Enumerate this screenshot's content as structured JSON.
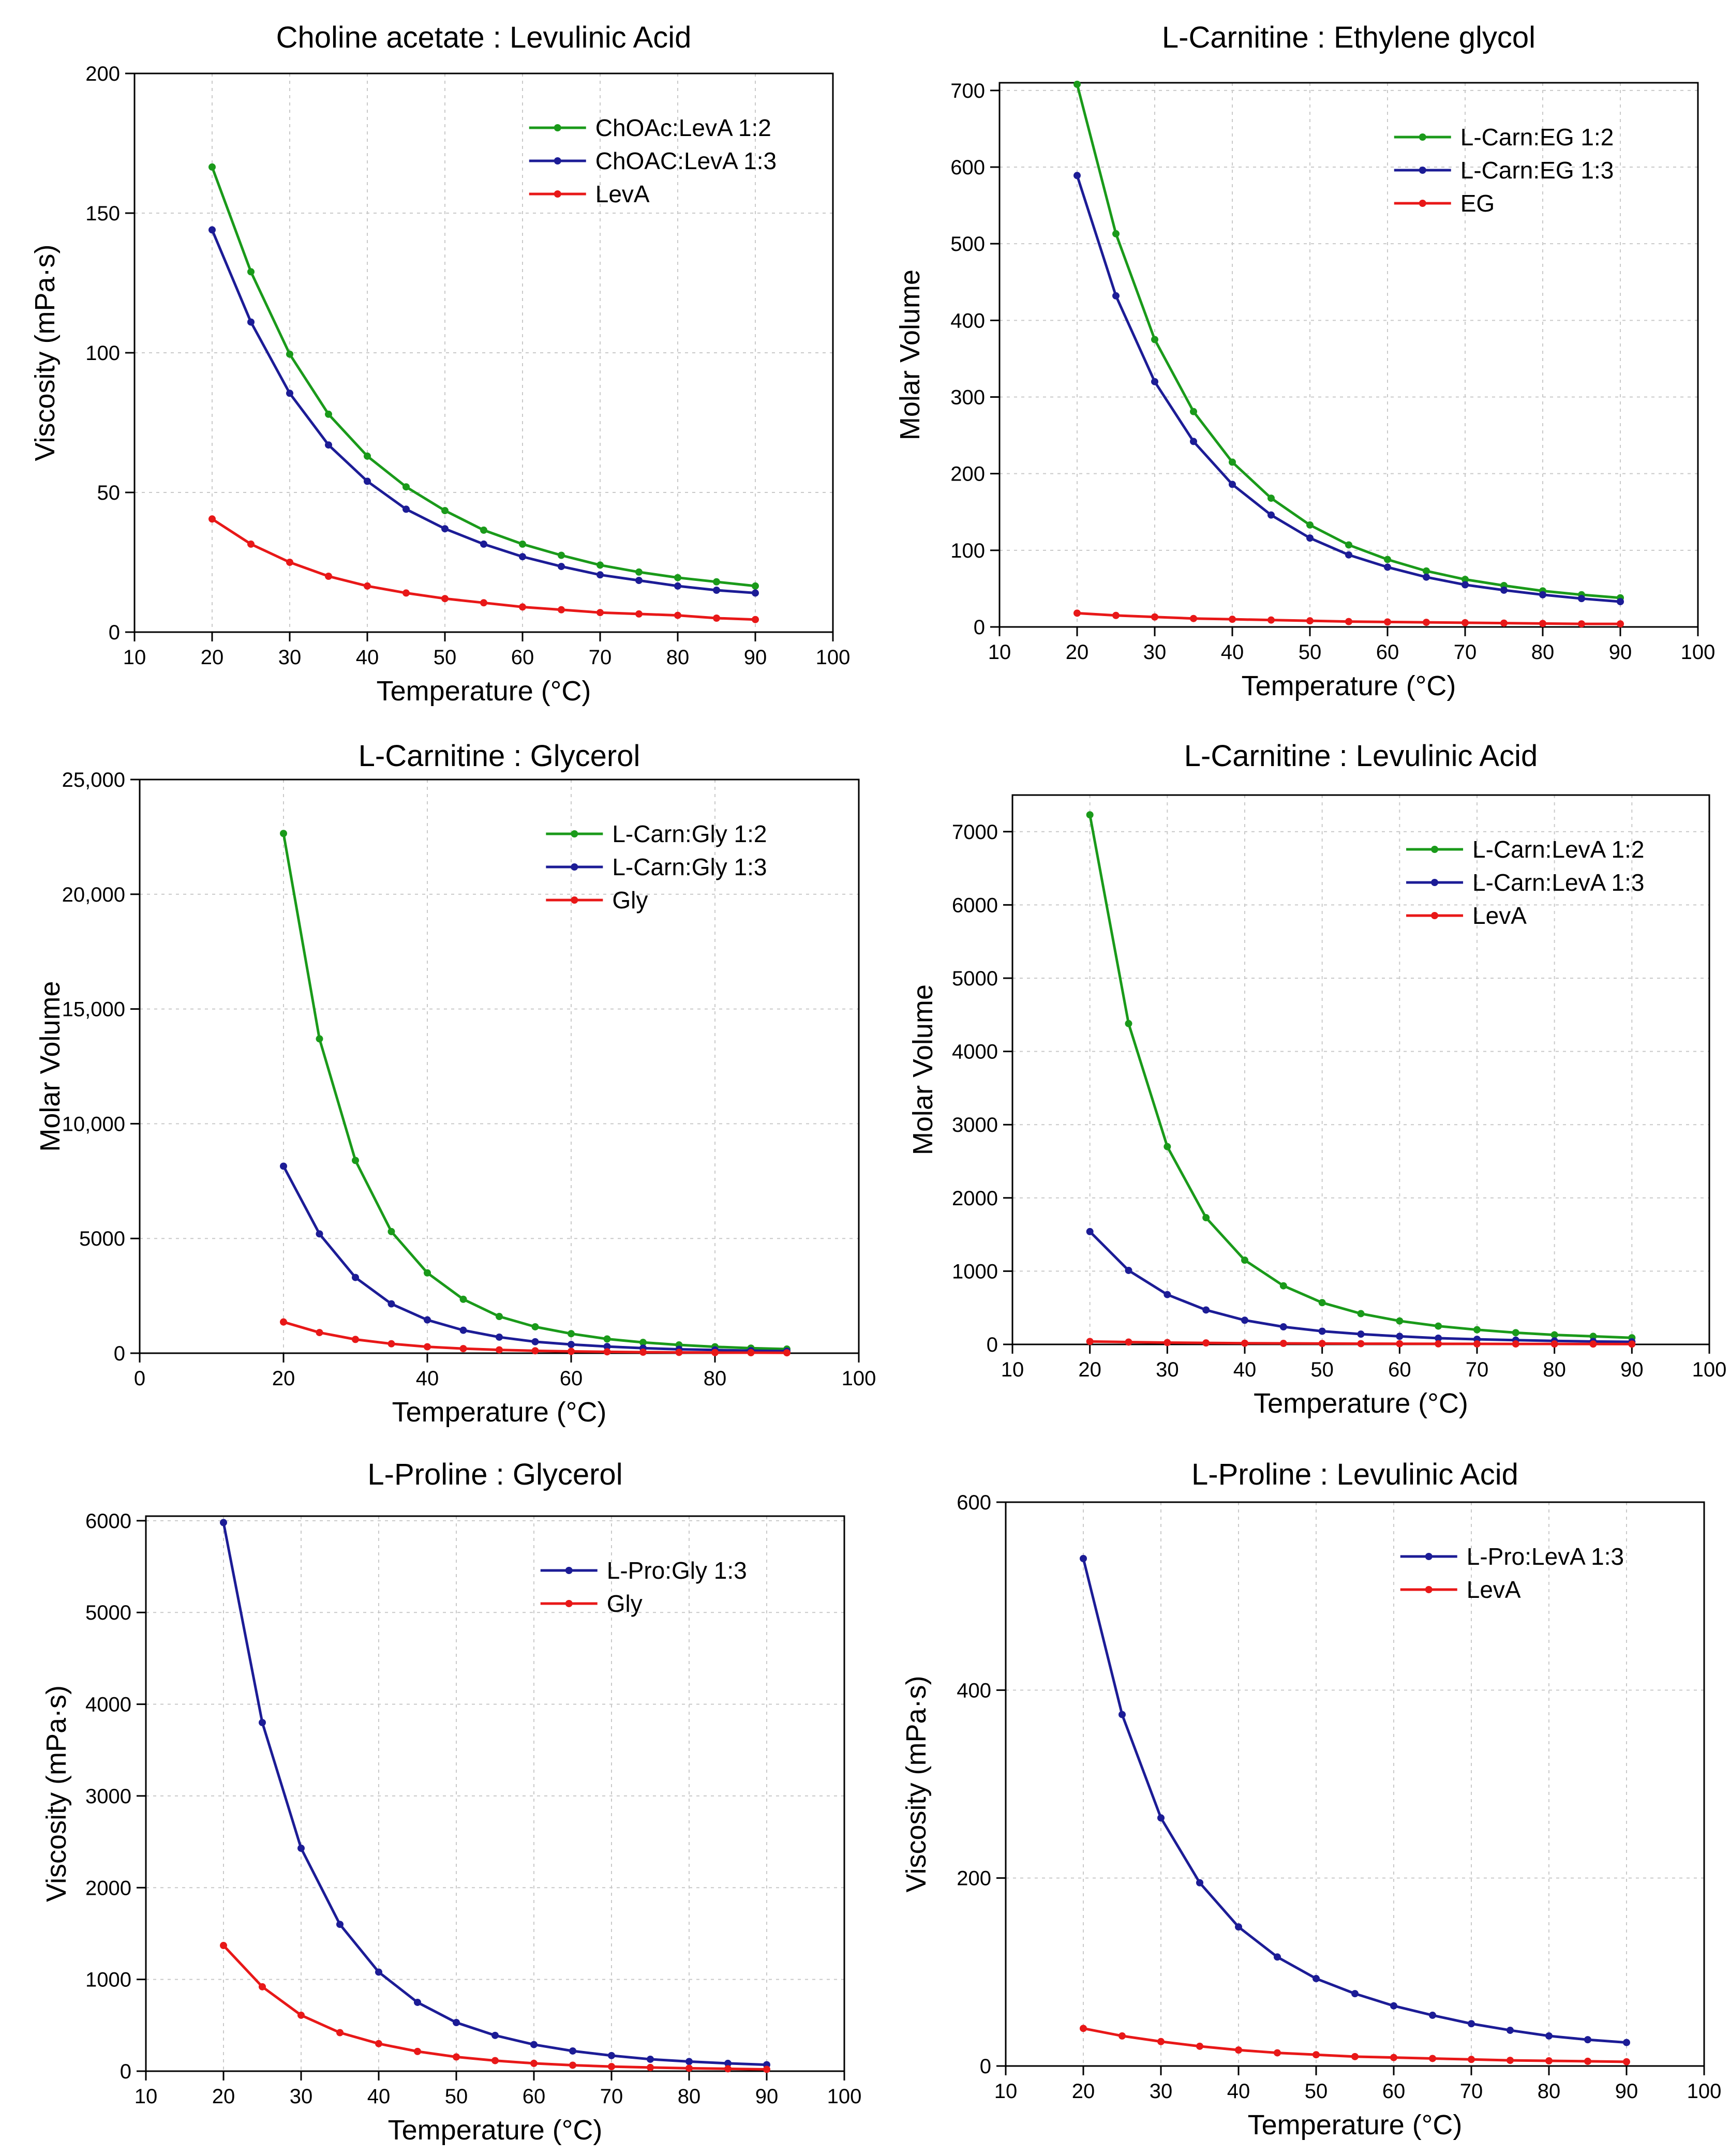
{
  "chart_data": [
    {
      "type": "line",
      "title": "Choline acetate : Levulinic Acid",
      "xlabel": "Temperature (°C)",
      "ylabel": "Viscosity (mPa·s)",
      "xlim": [
        10,
        100
      ],
      "ylim": [
        0,
        200
      ],
      "xticks": [
        10,
        20,
        30,
        40,
        50,
        60,
        70,
        80,
        90,
        100
      ],
      "yticks": [
        0,
        50,
        100,
        150,
        200
      ],
      "ytick_labels": [
        "0",
        "50",
        "100",
        "150",
        "200"
      ],
      "grid": true,
      "legend_position": "top-right",
      "x": [
        20,
        25,
        30,
        35,
        40,
        45,
        50,
        55,
        60,
        65,
        70,
        75,
        80,
        85,
        90
      ],
      "series": [
        {
          "name": "ChOAc:LevA 1:2",
          "color": "#1a9a1a",
          "values": [
            166.5,
            129,
            99.5,
            78,
            63,
            52,
            43.5,
            36.5,
            31.5,
            27.5,
            24,
            21.5,
            19.5,
            18,
            16.5
          ]
        },
        {
          "name": "ChOAC:LevA 1:3",
          "color": "#1c1c96",
          "values": [
            144,
            111,
            85.5,
            67,
            54,
            44,
            37,
            31.5,
            27,
            23.5,
            20.5,
            18.5,
            16.5,
            15,
            14
          ]
        },
        {
          "name": "LevA",
          "color": "#e81818",
          "values": [
            40.5,
            31.5,
            25,
            20,
            16.5,
            14,
            12,
            10.5,
            9,
            8,
            7,
            6.5,
            6,
            5,
            4.5
          ]
        }
      ]
    },
    {
      "type": "line",
      "title": "L-Carnitine : Ethylene glycol",
      "xlabel": "Temperature (°C)",
      "ylabel": "Molar Volume",
      "xlim": [
        10,
        100
      ],
      "ylim": [
        0,
        710
      ],
      "xticks": [
        10,
        20,
        30,
        40,
        50,
        60,
        70,
        80,
        90,
        100
      ],
      "yticks": [
        0,
        100,
        200,
        300,
        400,
        500,
        600,
        700
      ],
      "ytick_labels": [
        "0",
        "100",
        "200",
        "300",
        "400",
        "500",
        "600",
        "700"
      ],
      "grid": true,
      "legend_position": "top-right",
      "x": [
        20,
        25,
        30,
        35,
        40,
        45,
        50,
        55,
        60,
        65,
        70,
        75,
        80,
        85,
        90
      ],
      "series": [
        {
          "name": "L-Carn:EG 1:2",
          "color": "#1a9a1a",
          "values": [
            708,
            513,
            375,
            281,
            215,
            168,
            133,
            107,
            88,
            73,
            62,
            54,
            47,
            42,
            38
          ]
        },
        {
          "name": "L-Carn:EG 1:3",
          "color": "#1c1c96",
          "values": [
            589,
            432,
            320,
            242,
            186,
            146,
            116,
            94,
            78,
            65,
            55,
            48,
            42,
            37,
            33
          ]
        },
        {
          "name": "EG",
          "color": "#e81818",
          "values": [
            18,
            15,
            13,
            11,
            10,
            9,
            8,
            7,
            6.5,
            6,
            5.5,
            5,
            4.5,
            4,
            4
          ]
        }
      ]
    },
    {
      "type": "line",
      "title": "L-Carnitine : Glycerol",
      "xlabel": "Temperature (°C)",
      "ylabel": "Molar Volume",
      "xlim": [
        0,
        100
      ],
      "ylim": [
        0,
        25000
      ],
      "xticks": [
        0,
        20,
        40,
        60,
        80,
        100
      ],
      "yticks": [
        0,
        5000,
        10000,
        15000,
        20000,
        25000
      ],
      "ytick_labels": [
        "0",
        "5000",
        "10,000",
        "15,000",
        "20,000",
        "25,000"
      ],
      "grid": true,
      "legend_position": "top-right",
      "x": [
        20,
        25,
        30,
        35,
        40,
        45,
        50,
        55,
        60,
        65,
        70,
        75,
        80,
        85,
        90
      ],
      "series": [
        {
          "name": "L-Carn:Gly 1:2",
          "color": "#1a9a1a",
          "values": [
            22650,
            13700,
            8400,
            5300,
            3500,
            2350,
            1600,
            1150,
            850,
            620,
            470,
            360,
            280,
            220,
            180
          ]
        },
        {
          "name": "L-Carn:Gly 1:3",
          "color": "#1c1c96",
          "values": [
            8150,
            5200,
            3300,
            2150,
            1450,
            1000,
            700,
            500,
            380,
            290,
            220,
            170,
            140,
            110,
            90
          ]
        },
        {
          "name": "Gly",
          "color": "#e81818",
          "values": [
            1360,
            900,
            600,
            410,
            280,
            200,
            145,
            105,
            80,
            60,
            45,
            35,
            28,
            22,
            18
          ]
        }
      ]
    },
    {
      "type": "line",
      "title": "L-Carnitine : Levulinic Acid",
      "xlabel": "Temperature (°C)",
      "ylabel": "Molar Volume",
      "xlim": [
        10,
        100
      ],
      "ylim": [
        0,
        7500
      ],
      "xticks": [
        10,
        20,
        30,
        40,
        50,
        60,
        70,
        80,
        90,
        100
      ],
      "yticks": [
        0,
        1000,
        2000,
        3000,
        4000,
        5000,
        6000,
        7000
      ],
      "ytick_labels": [
        "0",
        "1000",
        "2000",
        "3000",
        "4000",
        "5000",
        "6000",
        "7000"
      ],
      "grid": true,
      "legend_position": "top-right",
      "x": [
        20,
        25,
        30,
        35,
        40,
        45,
        50,
        55,
        60,
        65,
        70,
        75,
        80,
        85,
        90
      ],
      "series": [
        {
          "name": "L-Carn:LevA 1:2",
          "color": "#1a9a1a",
          "values": [
            7230,
            4380,
            2700,
            1730,
            1150,
            800,
            570,
            420,
            320,
            250,
            200,
            160,
            130,
            110,
            90
          ]
        },
        {
          "name": "L-Carn:LevA 1:3",
          "color": "#1c1c96",
          "values": [
            1540,
            1010,
            680,
            470,
            330,
            240,
            180,
            140,
            110,
            85,
            70,
            58,
            48,
            40,
            35
          ]
        },
        {
          "name": "LevA",
          "color": "#e81818",
          "values": [
            40,
            32,
            25,
            20,
            16,
            14,
            12,
            10,
            9,
            8,
            7,
            6.5,
            6,
            5,
            4.5
          ]
        }
      ]
    },
    {
      "type": "line",
      "title": "L-Proline : Glycerol",
      "xlabel": "Temperature (°C)",
      "ylabel": "Viscosity (mPa·s)",
      "xlim": [
        10,
        100
      ],
      "ylim": [
        0,
        6050
      ],
      "xticks": [
        10,
        20,
        30,
        40,
        50,
        60,
        70,
        80,
        90,
        100
      ],
      "yticks": [
        0,
        1000,
        2000,
        3000,
        4000,
        5000,
        6000
      ],
      "ytick_labels": [
        "0",
        "1000",
        "2000",
        "3000",
        "4000",
        "5000",
        "6000"
      ],
      "grid": true,
      "legend_position": "top-right",
      "x": [
        20,
        25,
        30,
        35,
        40,
        45,
        50,
        55,
        60,
        65,
        70,
        75,
        80,
        85,
        90
      ],
      "series": [
        {
          "name": "L-Pro:Gly 1:3",
          "color": "#1c1c96",
          "values": [
            5980,
            3800,
            2430,
            1600,
            1080,
            750,
            530,
            390,
            290,
            220,
            170,
            130,
            105,
            85,
            70
          ]
        },
        {
          "name": "Gly",
          "color": "#e81818",
          "values": [
            1370,
            920,
            610,
            420,
            300,
            215,
            155,
            115,
            85,
            65,
            50,
            40,
            32,
            26,
            20
          ]
        }
      ]
    },
    {
      "type": "line",
      "title": "L-Proline : Levulinic Acid",
      "xlabel": "Temperature (°C)",
      "ylabel": "Viscosity (mPa·s)",
      "xlim": [
        10,
        100
      ],
      "ylim": [
        0,
        600
      ],
      "xticks": [
        10,
        20,
        30,
        40,
        50,
        60,
        70,
        80,
        90,
        100
      ],
      "yticks": [
        0,
        200,
        400,
        600
      ],
      "ytick_labels": [
        "0",
        "200",
        "400",
        "600"
      ],
      "grid": true,
      "legend_position": "top-right",
      "x": [
        20,
        25,
        30,
        35,
        40,
        45,
        50,
        55,
        60,
        65,
        70,
        75,
        80,
        85,
        90
      ],
      "series": [
        {
          "name": "L-Pro:LevA 1:3",
          "color": "#1c1c96",
          "values": [
            540,
            374,
            264,
            195,
            148,
            116,
            93,
            77,
            64,
            54,
            45,
            38,
            32,
            28,
            25
          ]
        },
        {
          "name": "LevA",
          "color": "#e81818",
          "values": [
            40,
            32,
            26,
            21,
            17,
            14,
            12,
            10,
            9,
            8,
            7,
            6,
            5.5,
            5,
            4.5
          ]
        }
      ]
    }
  ]
}
